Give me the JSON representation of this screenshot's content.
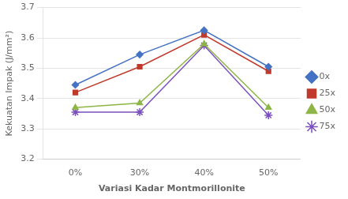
{
  "chart_data": {
    "type": "line",
    "categories": [
      "0%",
      "30%",
      "40%",
      "50%"
    ],
    "series": [
      {
        "name": "0x",
        "color": "#4472C4",
        "marker": "diamond",
        "values": [
          3.445,
          3.545,
          3.625,
          3.505
        ]
      },
      {
        "name": "25x",
        "color": "#C0392B",
        "marker": "square",
        "values": [
          3.42,
          3.505,
          3.61,
          3.49
        ]
      },
      {
        "name": "50x",
        "color": "#8DB646",
        "marker": "triangle",
        "values": [
          3.37,
          3.385,
          3.58,
          3.37
        ]
      },
      {
        "name": "75x",
        "color": "#7B4FBE",
        "marker": "star",
        "values": [
          3.355,
          3.355,
          3.575,
          3.345
        ]
      }
    ],
    "xlabel": "Variasi Kadar Montmorillonite",
    "ylabel": "Kekuatan Impak (J/mm²)",
    "ylim": [
      3.2,
      3.7
    ],
    "yticks": [
      3.2,
      3.3,
      3.4,
      3.5,
      3.6,
      3.7
    ],
    "grid": "y",
    "legend": "right"
  }
}
